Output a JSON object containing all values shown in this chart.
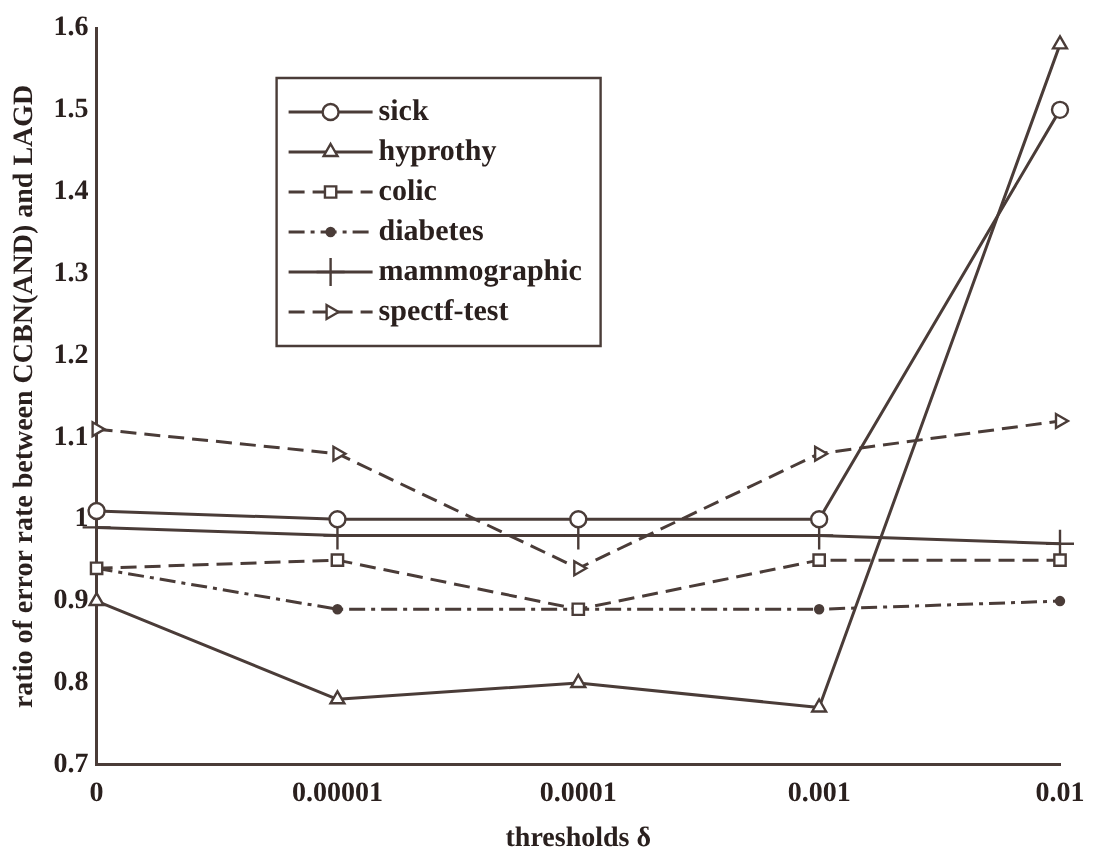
{
  "chart_data": {
    "type": "line",
    "xlabel": "thresholds δ",
    "ylabel": "ratio of error rate between CCBN(AND) and LAGD",
    "categories": [
      "0",
      "0.00001",
      "0.0001",
      "0.001",
      "0.01"
    ],
    "ylim": [
      0.7,
      1.6
    ],
    "yticks": [
      0.7,
      0.8,
      0.9,
      {
        "value": 1,
        "label": "1"
      },
      1.1,
      1.2,
      1.3,
      1.4,
      1.5,
      1.6
    ],
    "grid": false,
    "legend": "top left",
    "series": [
      {
        "name": "sick",
        "color": "#4a3c38",
        "marker": "circle",
        "line_style": "solid",
        "values": [
          1.01,
          1.0,
          1.0,
          1.0,
          1.5
        ]
      },
      {
        "name": "hyprothy",
        "color": "#4a3c38",
        "marker": "triangle",
        "line_style": "solid",
        "values": [
          0.9,
          0.78,
          0.8,
          0.77,
          1.58
        ]
      },
      {
        "name": "colic",
        "color": "#4a3c38",
        "marker": "square",
        "line_style": "dashed",
        "values": [
          0.94,
          0.95,
          0.89,
          0.95,
          0.95
        ]
      },
      {
        "name": "diabetes",
        "color": "#4a3c38",
        "marker": "circle",
        "line_style": "dotted",
        "values": [
          0.94,
          0.89,
          0.89,
          0.89,
          0.9
        ]
      },
      {
        "name": "mammographic",
        "color": "#4a3c38",
        "marker": "cross",
        "line_style": "solid",
        "values": [
          0.99,
          0.98,
          0.98,
          0.98,
          0.97
        ]
      },
      {
        "name": "spectf-test",
        "color": "#4a3c38",
        "marker": "triangle",
        "line_style": "dashed",
        "values": [
          1.11,
          1.08,
          0.94,
          1.08,
          1.12
        ]
      }
    ]
  }
}
